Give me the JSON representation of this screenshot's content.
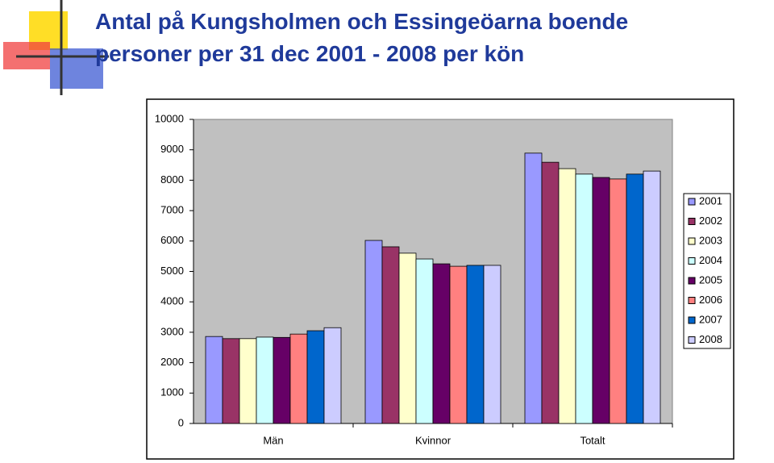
{
  "chart_data": {
    "type": "bar",
    "title": [
      "Antal på Kungsholmen och Essingeöarna boende",
      "personer per 31 dec 2001 - 2008 per kön"
    ],
    "categories": [
      "Män",
      "Kvinnor",
      "Totalt"
    ],
    "series": [
      {
        "name": "2001",
        "color": "#9999ff",
        "values": [
          2860,
          6020,
          8890
        ]
      },
      {
        "name": "2002",
        "color": "#993366",
        "values": [
          2790,
          5810,
          8590
        ]
      },
      {
        "name": "2003",
        "color": "#ffffcc",
        "values": [
          2790,
          5600,
          8380
        ]
      },
      {
        "name": "2004",
        "color": "#ccffff",
        "values": [
          2840,
          5410,
          8200
        ]
      },
      {
        "name": "2005",
        "color": "#660066",
        "values": [
          2830,
          5250,
          8090
        ]
      },
      {
        "name": "2006",
        "color": "#ff8080",
        "values": [
          2940,
          5170,
          8040
        ]
      },
      {
        "name": "2007",
        "color": "#0066cc",
        "values": [
          3050,
          5200,
          8200
        ]
      },
      {
        "name": "2008",
        "color": "#ccccff",
        "values": [
          3150,
          5200,
          8300
        ]
      }
    ],
    "ylim": [
      0,
      10000
    ],
    "yticks": [
      0,
      1000,
      2000,
      3000,
      4000,
      5000,
      6000,
      7000,
      8000,
      9000,
      10000
    ],
    "grid": false,
    "legend": "right"
  }
}
